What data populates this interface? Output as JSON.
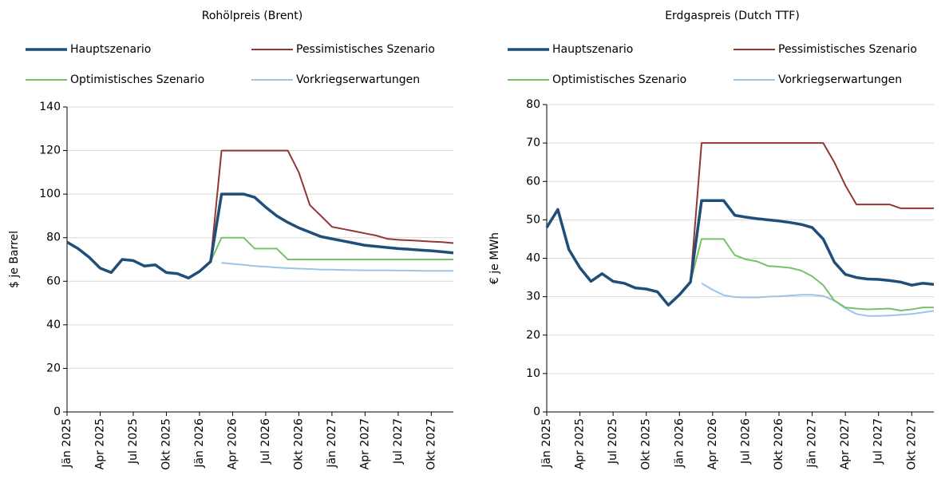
{
  "chart_data": [
    {
      "type": "line",
      "title": "Rohölpreis (Brent)",
      "y_label": "$ je Barrel",
      "categories": [
        "Jän 2025",
        null,
        null,
        "Apr 2025",
        null,
        null,
        "Jul 2025",
        null,
        null,
        "Okt 2025",
        null,
        null,
        "Jän 2026",
        null,
        null,
        "Apr 2026",
        null,
        null,
        "Jul 2026",
        null,
        null,
        "Okt 2026",
        null,
        null,
        "Jän 2027",
        null,
        null,
        "Apr 2027",
        null,
        null,
        "Jul 2027",
        null,
        null,
        "Okt 2027",
        null,
        null
      ],
      "ylim": [
        0,
        140
      ],
      "yticks": [
        0,
        20,
        40,
        60,
        80,
        100,
        120,
        140
      ],
      "grid": true,
      "series": [
        {
          "name": "Hauptszenario",
          "color": "#1f4e79",
          "values": [
            78,
            75,
            71,
            66,
            64,
            70,
            69.5,
            67,
            67.5,
            64,
            63.5,
            61.5,
            64.5,
            69,
            100,
            100,
            100,
            98.5,
            94,
            90,
            87,
            84.5,
            82.5,
            80.5,
            79.5,
            78.5,
            77.5,
            76.5,
            76,
            75.5,
            75,
            74.7,
            74.3,
            74,
            73.5,
            73
          ]
        },
        {
          "name": "Pessimistisches Szenario",
          "color": "#943634",
          "values": [
            null,
            null,
            null,
            null,
            null,
            null,
            null,
            null,
            null,
            null,
            null,
            null,
            null,
            69,
            120,
            120,
            120,
            120,
            120,
            120,
            120,
            110,
            95,
            90,
            85,
            84,
            83,
            82,
            81,
            79.5,
            79,
            78.8,
            78.5,
            78.2,
            78,
            77.5
          ]
        },
        {
          "name": "Optimistisches Szenario",
          "color": "#77c16b",
          "values": [
            null,
            null,
            null,
            null,
            null,
            null,
            null,
            null,
            null,
            null,
            null,
            null,
            null,
            69,
            80,
            80,
            80,
            75,
            75,
            75,
            70,
            70,
            70,
            70,
            70,
            70,
            70,
            70,
            70,
            70,
            70,
            70,
            70,
            70,
            70,
            70
          ]
        },
        {
          "name": "Vorkriegserwartungen",
          "color": "#9dc3e6",
          "values": [
            null,
            null,
            null,
            null,
            null,
            null,
            null,
            null,
            null,
            null,
            null,
            null,
            null,
            null,
            68.5,
            68,
            67.5,
            67,
            66.7,
            66.3,
            66,
            65.8,
            65.6,
            65.4,
            65.3,
            65.2,
            65.1,
            65,
            65,
            65,
            64.9,
            64.9,
            64.8,
            64.8,
            64.8,
            64.8
          ]
        }
      ]
    },
    {
      "type": "line",
      "title": "Erdgaspreis (Dutch TTF)",
      "y_label": "€ je MWh",
      "categories": [
        "Jän 2025",
        null,
        null,
        "Apr 2025",
        null,
        null,
        "Jul 2025",
        null,
        null,
        "Okt 2025",
        null,
        null,
        "Jän 2026",
        null,
        null,
        "Apr 2026",
        null,
        null,
        "Jul 2026",
        null,
        null,
        "Okt 2026",
        null,
        null,
        "Jän 2027",
        null,
        null,
        "Apr 2027",
        null,
        null,
        "Jul 2027",
        null,
        null,
        "Okt 2027",
        null,
        null
      ],
      "ylim": [
        0,
        80
      ],
      "yticks": [
        0,
        10,
        20,
        30,
        40,
        50,
        60,
        70,
        80
      ],
      "grid": true,
      "series": [
        {
          "name": "Hauptszenario",
          "color": "#1f4e79",
          "values": [
            48,
            52.7,
            42.3,
            37.5,
            34,
            36,
            34,
            33.5,
            32.3,
            32,
            31.3,
            27.8,
            30.5,
            33.8,
            55,
            55,
            55,
            51.2,
            50.7,
            50.3,
            50,
            49.7,
            49.3,
            48.8,
            48,
            45,
            39,
            35.8,
            35,
            34.6,
            34.5,
            34.2,
            33.8,
            33,
            33.5,
            33.2
          ]
        },
        {
          "name": "Pessimistisches Szenario",
          "color": "#943634",
          "values": [
            null,
            null,
            null,
            null,
            null,
            null,
            null,
            null,
            null,
            null,
            null,
            null,
            null,
            33.8,
            70,
            70,
            70,
            70,
            70,
            70,
            70,
            70,
            70,
            70,
            70,
            70,
            65,
            59,
            54,
            54,
            54,
            54,
            53,
            53,
            53,
            53
          ]
        },
        {
          "name": "Optimistisches Szenario",
          "color": "#77c16b",
          "values": [
            null,
            null,
            null,
            null,
            null,
            null,
            null,
            null,
            null,
            null,
            null,
            null,
            null,
            33.8,
            45,
            45,
            45,
            40.8,
            39.7,
            39.2,
            38,
            37.8,
            37.5,
            36.8,
            35.3,
            33,
            29,
            27.2,
            26.9,
            26.7,
            26.8,
            26.9,
            26.4,
            26.7,
            27.2,
            27.2
          ]
        },
        {
          "name": "Vorkriegserwartungen",
          "color": "#9dc3e6",
          "values": [
            null,
            null,
            null,
            null,
            null,
            null,
            null,
            null,
            null,
            null,
            null,
            null,
            null,
            null,
            33.5,
            31.8,
            30.4,
            29.9,
            29.8,
            29.8,
            30,
            30.1,
            30.3,
            30.5,
            30.5,
            30.2,
            29,
            27,
            25.5,
            25,
            25,
            25.1,
            25.3,
            25.5,
            25.9,
            26.3
          ]
        }
      ]
    }
  ]
}
